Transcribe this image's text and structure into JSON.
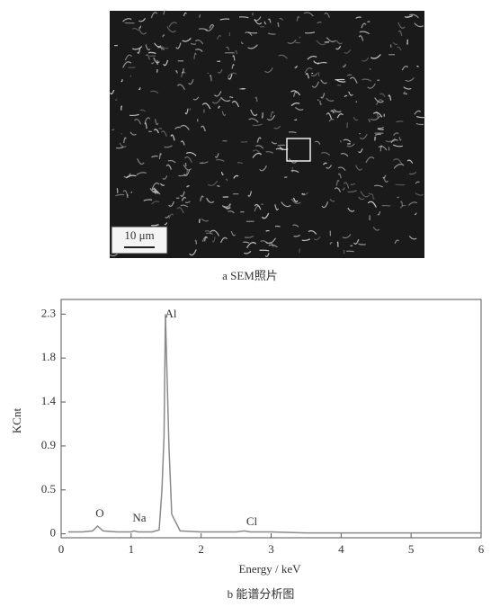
{
  "sem": {
    "scale_label": "10 μm",
    "caption": "a  SEM照片"
  },
  "chart_data": {
    "type": "area",
    "caption": "b  能谱分析图",
    "x_label": "Energy / keV",
    "y_label": "KCnt",
    "color": "#8a8a8a",
    "x": [
      0.1,
      0.3,
      0.45,
      0.52,
      0.6,
      0.8,
      1.0,
      1.04,
      1.1,
      1.3,
      1.4,
      1.44,
      1.47,
      1.49,
      1.51,
      1.54,
      1.58,
      1.7,
      2.0,
      2.5,
      2.62,
      2.7,
      3.0,
      3.5,
      4,
      5,
      6
    ],
    "values": [
      0.02,
      0.02,
      0.03,
      0.08,
      0.03,
      0.02,
      0.02,
      0.03,
      0.02,
      0.02,
      0.04,
      0.45,
      1.0,
      2.25,
      1.7,
      0.9,
      0.2,
      0.03,
      0.02,
      0.02,
      0.03,
      0.02,
      0.02,
      0.01,
      0.01,
      0.01,
      0.01
    ],
    "annotations": [
      "Al",
      "O",
      "Na",
      "Cl"
    ],
    "xlim": [
      0,
      6
    ],
    "xticks": [
      0,
      1,
      2,
      3,
      4,
      5,
      6
    ],
    "ylim": [
      -0.04,
      2.4
    ],
    "yticks": [
      0,
      {
        "value": 0.45,
        "label": "0.5"
      },
      0.9,
      {
        "value": 1.35,
        "label": "1.4"
      },
      1.8,
      {
        "value": 2.25,
        "label": "2.3"
      }
    ]
  }
}
